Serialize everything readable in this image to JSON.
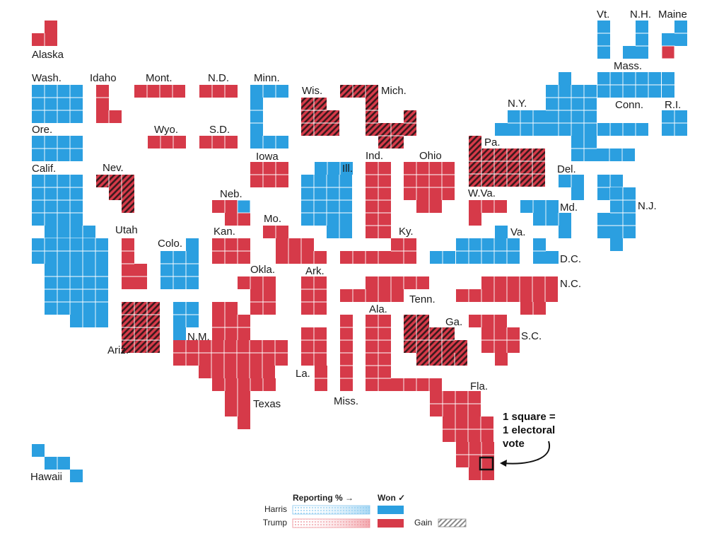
{
  "colors": {
    "harris": "#2b9fe0",
    "trump": "#d63a49",
    "gain_hatch": "#1a1a1a",
    "grid_line": "#ffffff",
    "text": "#1a1a1a"
  },
  "map": {
    "description_key": "1 square = 1 electoral vote",
    "states": [
      {
        "abbr": "Alaska",
        "winner": "trump",
        "gain": false,
        "electoral_votes": 3
      },
      {
        "abbr": "Wash.",
        "winner": "harris",
        "gain": false,
        "electoral_votes": 12
      },
      {
        "abbr": "Idaho",
        "winner": "trump",
        "gain": false,
        "electoral_votes": 4
      },
      {
        "abbr": "Mont.",
        "winner": "trump",
        "gain": false,
        "electoral_votes": 4
      },
      {
        "abbr": "N.D.",
        "winner": "trump",
        "gain": false,
        "electoral_votes": 3
      },
      {
        "abbr": "Minn.",
        "winner": "harris",
        "gain": false,
        "electoral_votes": 10
      },
      {
        "abbr": "Wis.",
        "winner": "trump",
        "gain": true,
        "electoral_votes": 10
      },
      {
        "abbr": "Mich.",
        "winner": "trump",
        "gain": true,
        "electoral_votes": 15
      },
      {
        "abbr": "Vt.",
        "winner": "harris",
        "gain": false,
        "electoral_votes": 3
      },
      {
        "abbr": "N.H.",
        "winner": "harris",
        "gain": false,
        "electoral_votes": 4
      },
      {
        "abbr": "Maine",
        "winner": "harris",
        "gain": false,
        "electoral_votes": 4
      },
      {
        "abbr": "Mass.",
        "winner": "harris",
        "gain": false,
        "electoral_votes": 11
      },
      {
        "abbr": "N.Y.",
        "winner": "harris",
        "gain": false,
        "electoral_votes": 28
      },
      {
        "abbr": "Conn.",
        "winner": "harris",
        "gain": false,
        "electoral_votes": 7
      },
      {
        "abbr": "R.I.",
        "winner": "harris",
        "gain": false,
        "electoral_votes": 4
      },
      {
        "abbr": "Ore.",
        "winner": "harris",
        "gain": false,
        "electoral_votes": 8
      },
      {
        "abbr": "Wyo.",
        "winner": "trump",
        "gain": false,
        "electoral_votes": 3
      },
      {
        "abbr": "S.D.",
        "winner": "trump",
        "gain": false,
        "electoral_votes": 3
      },
      {
        "abbr": "Iowa",
        "winner": "trump",
        "gain": false,
        "electoral_votes": 6
      },
      {
        "abbr": "Ind.",
        "winner": "trump",
        "gain": false,
        "electoral_votes": 11
      },
      {
        "abbr": "Ohio",
        "winner": "trump",
        "gain": false,
        "electoral_votes": 17
      },
      {
        "abbr": "Pa.",
        "winner": "trump",
        "gain": true,
        "electoral_votes": 19
      },
      {
        "abbr": "Calif.",
        "winner": "harris",
        "gain": false,
        "electoral_votes": 54
      },
      {
        "abbr": "Nev.",
        "winner": "trump",
        "gain": true,
        "electoral_votes": 6
      },
      {
        "abbr": "Ill.",
        "winner": "harris",
        "gain": false,
        "electoral_votes": 19
      },
      {
        "abbr": "Del.",
        "winner": "harris",
        "gain": false,
        "electoral_votes": 3
      },
      {
        "abbr": "Neb.",
        "winner": "trump",
        "gain": false,
        "electoral_votes": 5
      },
      {
        "abbr": "W.Va.",
        "winner": "trump",
        "gain": false,
        "electoral_votes": 4
      },
      {
        "abbr": "N.J.",
        "winner": "harris",
        "gain": false,
        "electoral_votes": 14
      },
      {
        "abbr": "Md.",
        "winner": "harris",
        "gain": false,
        "electoral_votes": 10
      },
      {
        "abbr": "Mo.",
        "winner": "trump",
        "gain": false,
        "electoral_votes": 10
      },
      {
        "abbr": "Utah",
        "winner": "trump",
        "gain": false,
        "electoral_votes": 6
      },
      {
        "abbr": "Kan.",
        "winner": "trump",
        "gain": false,
        "electoral_votes": 6
      },
      {
        "abbr": "Ky.",
        "winner": "trump",
        "gain": false,
        "electoral_votes": 8
      },
      {
        "abbr": "Va.",
        "winner": "harris",
        "gain": false,
        "electoral_votes": 13
      },
      {
        "abbr": "Colo.",
        "winner": "harris",
        "gain": false,
        "electoral_votes": 10
      },
      {
        "abbr": "D.C.",
        "winner": "harris",
        "gain": false,
        "electoral_votes": 3
      },
      {
        "abbr": "Okla.",
        "winner": "trump",
        "gain": false,
        "electoral_votes": 7
      },
      {
        "abbr": "Ark.",
        "winner": "trump",
        "gain": false,
        "electoral_votes": 6
      },
      {
        "abbr": "N.C.",
        "winner": "trump",
        "gain": false,
        "electoral_votes": 16
      },
      {
        "abbr": "Tenn.",
        "winner": "trump",
        "gain": false,
        "electoral_votes": 11
      },
      {
        "abbr": "Ala.",
        "winner": "trump",
        "gain": false,
        "electoral_votes": 9
      },
      {
        "abbr": "Ga.",
        "winner": "trump",
        "gain": true,
        "electoral_votes": 16
      },
      {
        "abbr": "Ariz.",
        "winner": "trump",
        "gain": true,
        "electoral_votes": 11
      },
      {
        "abbr": "N.M.",
        "winner": "harris",
        "gain": false,
        "electoral_votes": 5
      },
      {
        "abbr": "S.C.",
        "winner": "trump",
        "gain": false,
        "electoral_votes": 9
      },
      {
        "abbr": "La.",
        "winner": "trump",
        "gain": false,
        "electoral_votes": 8
      },
      {
        "abbr": "Miss.",
        "winner": "trump",
        "gain": false,
        "electoral_votes": 6
      },
      {
        "abbr": "Texas",
        "winner": "trump",
        "gain": false,
        "electoral_votes": 40
      },
      {
        "abbr": "Fla.",
        "winner": "trump",
        "gain": false,
        "electoral_votes": 30
      },
      {
        "abbr": "Hawaii",
        "winner": "harris",
        "gain": false,
        "electoral_votes": 4
      }
    ]
  },
  "annotation": {
    "line1": "1 square =",
    "line2": "1 electoral",
    "line3": "vote"
  },
  "legend": {
    "reporting_label": "Reporting % →",
    "won_label": "Won ✓",
    "harris_label": "Harris",
    "trump_label": "Trump",
    "gain_label": "Gain"
  }
}
